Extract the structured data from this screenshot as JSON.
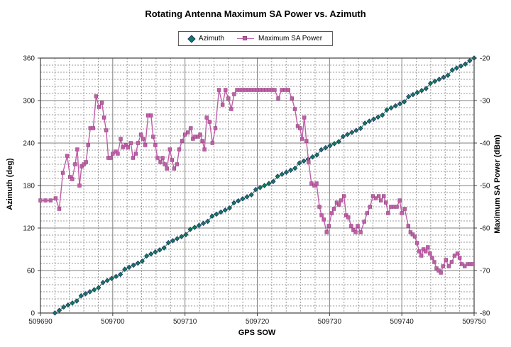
{
  "chart_data": {
    "type": "line",
    "title": "Rotating Antenna Maximum SA Power vs. Azimuth",
    "grid": true,
    "legend_position": "top-center",
    "x_axis": {
      "label": "GPS SOW",
      "min": 509690,
      "max": 509750,
      "minor_step": 2,
      "ticks": [
        509690,
        509700,
        509710,
        509720,
        509730,
        509740,
        509750
      ]
    },
    "y_left": {
      "label": "Azimuth (deg)",
      "min": 0,
      "max": 360,
      "minor_step": 10,
      "ticks": [
        0,
        60,
        120,
        180,
        240,
        300,
        360
      ]
    },
    "y_right": {
      "label": "Maximum SA Power (dBm)",
      "min": -80,
      "max": -20,
      "ticks": [
        -20,
        -30,
        -40,
        -50,
        -60,
        -70,
        -80
      ]
    },
    "colors": {
      "azimuth_fill": "#14795f",
      "azimuth_outline": "#1f3864",
      "power": "#c05fa8",
      "power_outline": "#93427e",
      "grid_major": "#7f7f7f",
      "grid_minor": "#999999",
      "axis": "#404040",
      "text": "#1a1a1a"
    },
    "series": [
      {
        "name": "Azimuth",
        "axis": "left",
        "marker": "diamond",
        "shape": "linear_ramp",
        "x_start": 509692,
        "x_end": 509750,
        "y_start": 0,
        "y_end": 360,
        "n_points": 97
      },
      {
        "name": "Maximum SA Power",
        "axis": "right",
        "marker": "square",
        "points": [
          [
            509690.0,
            -53.5
          ],
          [
            509690.7,
            -53.5
          ],
          [
            509691.4,
            -53.5
          ],
          [
            509692.1,
            -53
          ],
          [
            509692.6,
            -55.5
          ],
          [
            509693.1,
            -47
          ],
          [
            509693.7,
            -43
          ],
          [
            509694.1,
            -48
          ],
          [
            509694.4,
            -48.5
          ],
          [
            509694.8,
            -45
          ],
          [
            509695.1,
            -41.5
          ],
          [
            509695.4,
            -50
          ],
          [
            509695.7,
            -45.5
          ],
          [
            509696.0,
            -45
          ],
          [
            509696.3,
            -44.5
          ],
          [
            509696.6,
            -40.5
          ],
          [
            509696.9,
            -36.5
          ],
          [
            509697.3,
            -36.5
          ],
          [
            509697.7,
            -29
          ],
          [
            509698.1,
            -31.5
          ],
          [
            509698.5,
            -30.5
          ],
          [
            509698.8,
            -34
          ],
          [
            509699.1,
            -37
          ],
          [
            509699.4,
            -43.5
          ],
          [
            509699.7,
            -43.5
          ],
          [
            509700.0,
            -42.5
          ],
          [
            509700.4,
            -42
          ],
          [
            509700.7,
            -42.5
          ],
          [
            509701.1,
            -39
          ],
          [
            509701.4,
            -41
          ],
          [
            509701.8,
            -40.5
          ],
          [
            509702.1,
            -41
          ],
          [
            509702.5,
            -40
          ],
          [
            509702.8,
            -43.5
          ],
          [
            509703.2,
            -42.5
          ],
          [
            509703.5,
            -40
          ],
          [
            509703.9,
            -38
          ],
          [
            509704.2,
            -39
          ],
          [
            509704.5,
            -40.5
          ],
          [
            509704.9,
            -33.5
          ],
          [
            509705.3,
            -33.5
          ],
          [
            509705.6,
            -38.5
          ],
          [
            509705.9,
            -40.5
          ],
          [
            509706.2,
            -43.5
          ],
          [
            509706.6,
            -44.5
          ],
          [
            509706.9,
            -43.5
          ],
          [
            509707.2,
            -45
          ],
          [
            509707.5,
            -46
          ],
          [
            509707.9,
            -41.5
          ],
          [
            509708.2,
            -44
          ],
          [
            509708.5,
            -46
          ],
          [
            509708.9,
            -45
          ],
          [
            509709.2,
            -41.5
          ],
          [
            509709.6,
            -39.5
          ],
          [
            509710.0,
            -38
          ],
          [
            509710.4,
            -37.5
          ],
          [
            509710.8,
            -36.5
          ],
          [
            509711.1,
            -39
          ],
          [
            509711.4,
            -38.5
          ],
          [
            509711.8,
            -38.5
          ],
          [
            509712.1,
            -38
          ],
          [
            509712.4,
            -39.5
          ],
          [
            509712.7,
            -41.5
          ],
          [
            509713.0,
            -34
          ],
          [
            509713.4,
            -35
          ],
          [
            509713.8,
            -40
          ],
          [
            509714.2,
            -36.5
          ],
          [
            509714.7,
            -27.5
          ],
          [
            509715.2,
            -31
          ],
          [
            509715.6,
            -27.5
          ],
          [
            509716.0,
            -29.5
          ],
          [
            509716.4,
            -32
          ],
          [
            509716.8,
            -28.5
          ],
          [
            509717.2,
            -27.5
          ],
          [
            509717.6,
            -27.5
          ],
          [
            509718.0,
            -27.5
          ],
          [
            509718.4,
            -27.5
          ],
          [
            509718.8,
            -27.5
          ],
          [
            509719.2,
            -27.5
          ],
          [
            509719.6,
            -27.5
          ],
          [
            509720.0,
            -27.5
          ],
          [
            509720.4,
            -27.5
          ],
          [
            509720.8,
            -27.5
          ],
          [
            509721.2,
            -27.5
          ],
          [
            509721.6,
            -27.5
          ],
          [
            509722.0,
            -27.5
          ],
          [
            509722.4,
            -27.5
          ],
          [
            509722.9,
            -29.5
          ],
          [
            509723.4,
            -27.5
          ],
          [
            509723.9,
            -27.5
          ],
          [
            509724.3,
            -27.5
          ],
          [
            509724.8,
            -29.5
          ],
          [
            509725.2,
            -32
          ],
          [
            509725.6,
            -36
          ],
          [
            509725.9,
            -36.5
          ],
          [
            509726.2,
            -39
          ],
          [
            509726.5,
            -34
          ],
          [
            509726.8,
            -39.5
          ],
          [
            509727.1,
            -44.5
          ],
          [
            509727.5,
            -49.5
          ],
          [
            509727.9,
            -50
          ],
          [
            509728.2,
            -49.5
          ],
          [
            509728.6,
            -55
          ],
          [
            509728.9,
            -57
          ],
          [
            509729.2,
            -58
          ],
          [
            509729.6,
            -61
          ],
          [
            509729.9,
            -59.5
          ],
          [
            509730.3,
            -56.5
          ],
          [
            509730.6,
            -55.5
          ],
          [
            509731.0,
            -54
          ],
          [
            509731.3,
            -54.5
          ],
          [
            509731.6,
            -53.5
          ],
          [
            509732.0,
            -52.5
          ],
          [
            509732.3,
            -57
          ],
          [
            509732.6,
            -57.5
          ],
          [
            509733.0,
            -59.5
          ],
          [
            509733.3,
            -60.5
          ],
          [
            509733.6,
            -61
          ],
          [
            509733.9,
            -59.5
          ],
          [
            509734.3,
            -61
          ],
          [
            509734.8,
            -58.5
          ],
          [
            509735.2,
            -56.5
          ],
          [
            509735.6,
            -55
          ],
          [
            509736.0,
            -52.5
          ],
          [
            509736.4,
            -53
          ],
          [
            509736.8,
            -52.5
          ],
          [
            509737.1,
            -53.5
          ],
          [
            509737.5,
            -52.5
          ],
          [
            509737.8,
            -54
          ],
          [
            509738.1,
            -56.5
          ],
          [
            509738.5,
            -55
          ],
          [
            509738.9,
            -55
          ],
          [
            509739.3,
            -55
          ],
          [
            509739.7,
            -53.5
          ],
          [
            509740.0,
            -56.5
          ],
          [
            509740.4,
            -55.5
          ],
          [
            509740.9,
            -59.5
          ],
          [
            509741.2,
            -61
          ],
          [
            509741.5,
            -61.5
          ],
          [
            509741.8,
            -62
          ],
          [
            509742.1,
            -63.5
          ],
          [
            509742.4,
            -65.5
          ],
          [
            509742.7,
            -66.5
          ],
          [
            509743.0,
            -65
          ],
          [
            509743.3,
            -65.5
          ],
          [
            509743.6,
            -64.5
          ],
          [
            509743.9,
            -66
          ],
          [
            509744.2,
            -67
          ],
          [
            509744.5,
            -68
          ],
          [
            509744.8,
            -69.5
          ],
          [
            509745.1,
            -70
          ],
          [
            509745.4,
            -70.5
          ],
          [
            509745.7,
            -69
          ],
          [
            509746.1,
            -67.5
          ],
          [
            509746.5,
            -69
          ],
          [
            509746.9,
            -68
          ],
          [
            509747.3,
            -66.5
          ],
          [
            509747.7,
            -66
          ],
          [
            509748.0,
            -67
          ],
          [
            509748.3,
            -68.5
          ],
          [
            509748.7,
            -69
          ],
          [
            509749.1,
            -68.5
          ],
          [
            509749.5,
            -68.5
          ],
          [
            509749.8,
            -68.5
          ]
        ]
      }
    ]
  }
}
